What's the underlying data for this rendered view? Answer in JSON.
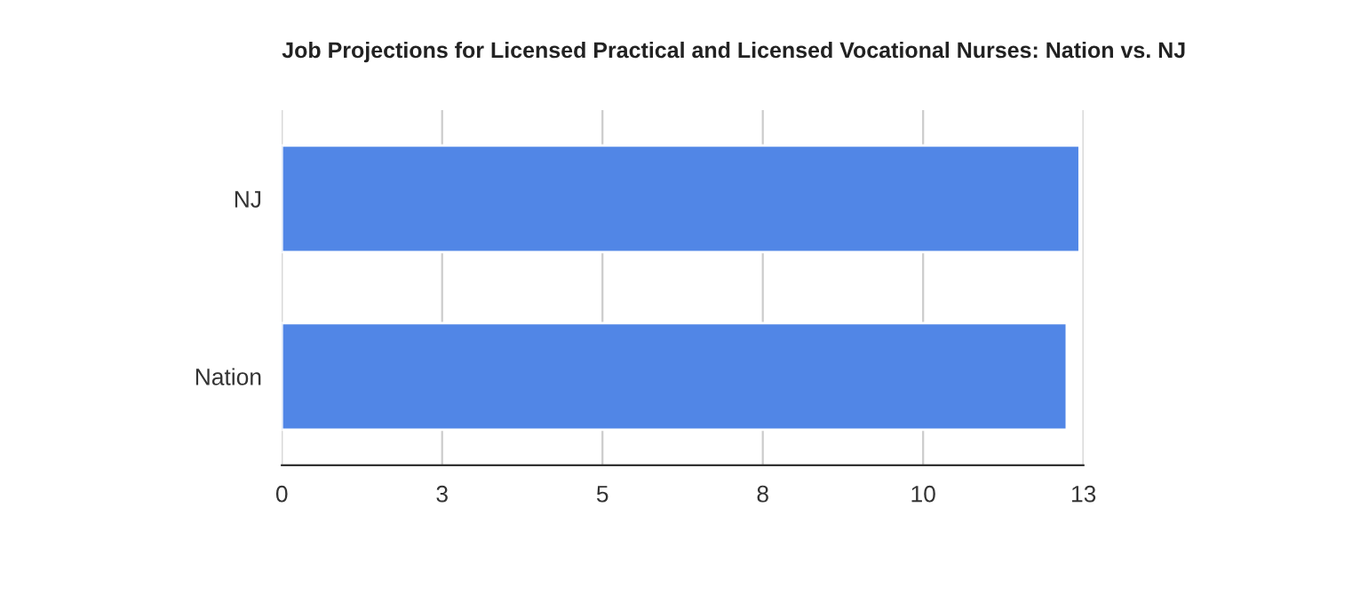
{
  "chart_data": {
    "type": "bar",
    "orientation": "horizontal",
    "title": "Job Projections for Licensed Practical and Licensed Vocational Nurses: Nation vs. NJ",
    "categories": [
      "NJ",
      "Nation"
    ],
    "series": [
      {
        "color": "#5186e6",
        "values": [
          12.44,
          12.24
        ]
      }
    ],
    "xlim": [
      0,
      12.5
    ],
    "xticks": [
      0,
      {
        "value": 2.5,
        "label": "3"
      },
      5,
      {
        "value": 7.5,
        "label": "8"
      },
      10,
      {
        "value": 12.5,
        "label": "13"
      }
    ],
    "grid": "x"
  }
}
